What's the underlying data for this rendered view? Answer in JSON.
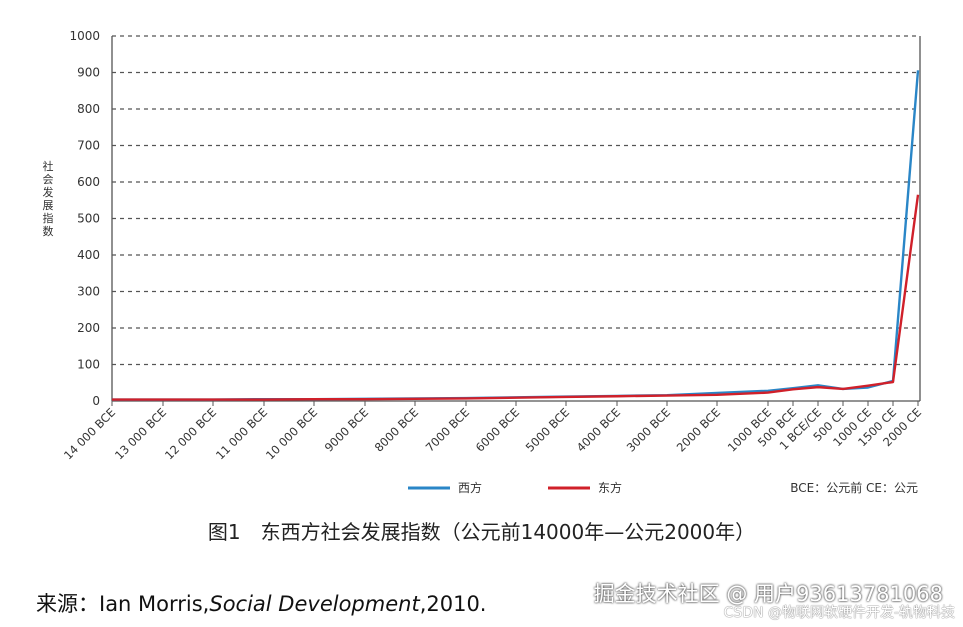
{
  "chart_data": {
    "type": "line",
    "ylabel": "社会发展指数",
    "ylim": [
      0,
      1000
    ],
    "yticks": [
      "0",
      "100",
      "200",
      "300",
      "400",
      "500",
      "600",
      "700",
      "800",
      "900",
      "1000"
    ],
    "xticks": [
      "14 000 BCE",
      "13 000 BCE",
      "12 000 BCE",
      "11 000 BCE",
      "10 000 BCE",
      "9000 BCE",
      "8000 BCE",
      "7000 BCE",
      "6000 BCE",
      "5000 BCE",
      "4000 BCE",
      "3000 BCE",
      "2000 BCE",
      "1000 BCE",
      "500 BCE",
      "1 BCE/CE",
      "500 CE",
      "1000 CE",
      "1500 CE",
      "2000 CE"
    ],
    "grid": true,
    "series": [
      {
        "name": "西方",
        "color": "#2a86c7",
        "x": [
          "14 000 BCE",
          "13 000 BCE",
          "12 000 BCE",
          "11 000 BCE",
          "10 000 BCE",
          "9000 BCE",
          "8000 BCE",
          "7000 BCE",
          "6000 BCE",
          "5000 BCE",
          "4000 BCE",
          "3000 BCE",
          "2000 BCE",
          "1000 BCE",
          "500 BCE",
          "1 BCE/CE",
          "500 CE",
          "1000 CE",
          "1500 CE",
          "2000 CE"
        ],
        "values": [
          4,
          4,
          4,
          5,
          5,
          6,
          7,
          8,
          10,
          12,
          14,
          16,
          22,
          28,
          35,
          43,
          33,
          37,
          55,
          906
        ]
      },
      {
        "name": "东方",
        "color": "#d0202a",
        "x": [
          "14 000 BCE",
          "13 000 BCE",
          "12 000 BCE",
          "11 000 BCE",
          "10 000 BCE",
          "9000 BCE",
          "8000 BCE",
          "7000 BCE",
          "6000 BCE",
          "5000 BCE",
          "4000 BCE",
          "3000 BCE",
          "2000 BCE",
          "1000 BCE",
          "500 BCE",
          "1 BCE/CE",
          "500 CE",
          "1000 CE",
          "1500 CE",
          "2000 CE"
        ],
        "values": [
          4,
          4,
          4,
          4,
          5,
          5,
          6,
          7,
          9,
          11,
          13,
          15,
          17,
          23,
          32,
          38,
          33,
          42,
          52,
          565
        ]
      }
    ],
    "legend_note": "BCE：公元前    CE：公元"
  },
  "caption": "图1　东西方社会发展指数（公元前14000年—公元2000年）",
  "source_prefix": "来源：Ian Morris,",
  "source_title": "Social Development",
  "source_suffix": ",2010.",
  "watermark_main": "掘金技术社区 @ 用户93613781068",
  "watermark_sub": "CSDN @物联网软硬件开发-轨物科技"
}
